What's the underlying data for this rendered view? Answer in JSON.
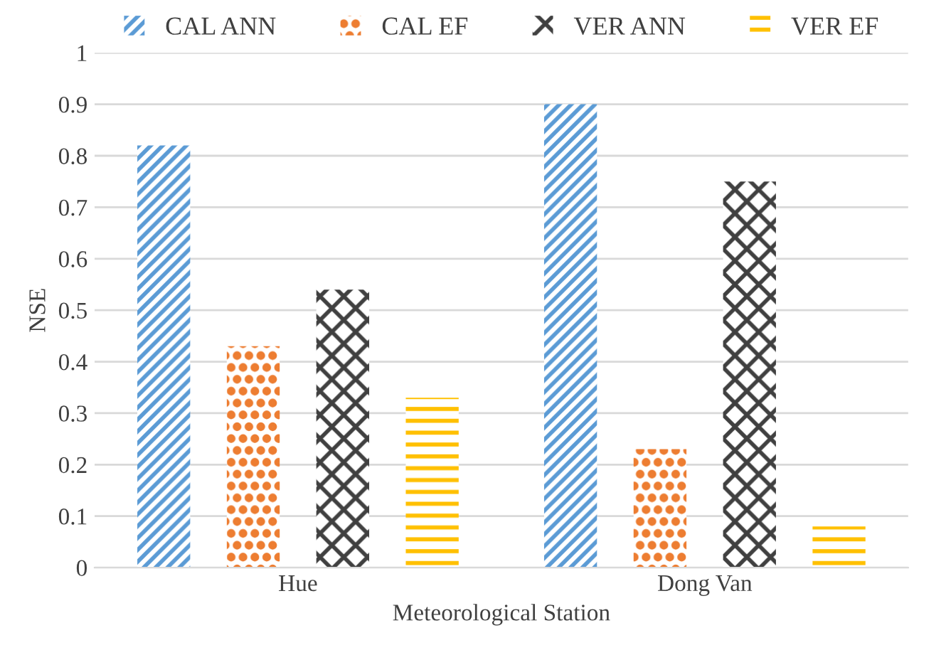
{
  "chart_data": {
    "type": "bar",
    "xlabel": "Meteorological Station",
    "ylabel": "NSE",
    "categories": [
      "Hue",
      "Dong Van"
    ],
    "series": [
      {
        "name": "CAL ANN",
        "color": "#5b9bd5",
        "values": [
          0.82,
          0.9
        ]
      },
      {
        "name": "CAL EF",
        "color": "#ed7d31",
        "values": [
          0.43,
          0.23
        ]
      },
      {
        "name": "VER ANN",
        "color": "#404040",
        "values": [
          0.54,
          0.75
        ]
      },
      {
        "name": "VER EF",
        "color": "#ffc000",
        "values": [
          0.33,
          0.08
        ]
      }
    ],
    "ylim": [
      0,
      1
    ],
    "yticks": [
      0,
      0.1,
      0.2,
      0.3,
      0.4,
      0.5,
      0.6,
      0.7,
      0.8,
      0.9,
      1
    ],
    "grid": "y",
    "legend": "top"
  }
}
